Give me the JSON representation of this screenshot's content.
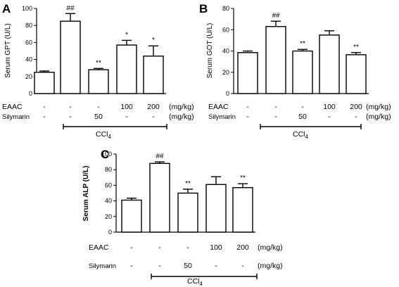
{
  "rows": {
    "eaac_label": "EAAC",
    "silymarin_label": "Silymarin",
    "eaac": [
      "-",
      "-",
      "-",
      "100",
      "200"
    ],
    "silymarin": [
      "-",
      "-",
      "50",
      "-",
      "-"
    ],
    "unit": "(mg/kg)",
    "ccl4_main": "CCl",
    "ccl4_sub": "4"
  },
  "chart_data": [
    {
      "panel": "A",
      "type": "bar",
      "ylabel": "Serum GPT (U/L)",
      "ylim": [
        0,
        100
      ],
      "yticks": [
        0,
        20,
        40,
        60,
        80,
        100
      ],
      "values": [
        25,
        85,
        28,
        57,
        44
      ],
      "errors": [
        1.5,
        9,
        1.5,
        5.5,
        12
      ],
      "annotations": [
        "",
        "##",
        "**",
        "*",
        "*"
      ]
    },
    {
      "panel": "B",
      "type": "bar",
      "ylabel": "Serum GOT (U/L)",
      "ylim": [
        0,
        80
      ],
      "yticks": [
        0,
        20,
        40,
        60,
        80
      ],
      "values": [
        38.5,
        63,
        40,
        55,
        36.5
      ],
      "errors": [
        1.5,
        5,
        1.5,
        4,
        2
      ],
      "annotations": [
        "",
        "##",
        "**",
        "",
        "**"
      ]
    },
    {
      "panel": "C",
      "type": "bar",
      "ylabel": "Serum ALP (U/L)",
      "ylim": [
        0,
        100
      ],
      "yticks": [
        0,
        20,
        40,
        60,
        80,
        100
      ],
      "values": [
        41,
        88,
        50,
        61,
        57
      ],
      "errors": [
        2.5,
        2,
        5,
        10,
        5
      ],
      "annotations": [
        "",
        "##",
        "**",
        "",
        "**"
      ]
    }
  ]
}
